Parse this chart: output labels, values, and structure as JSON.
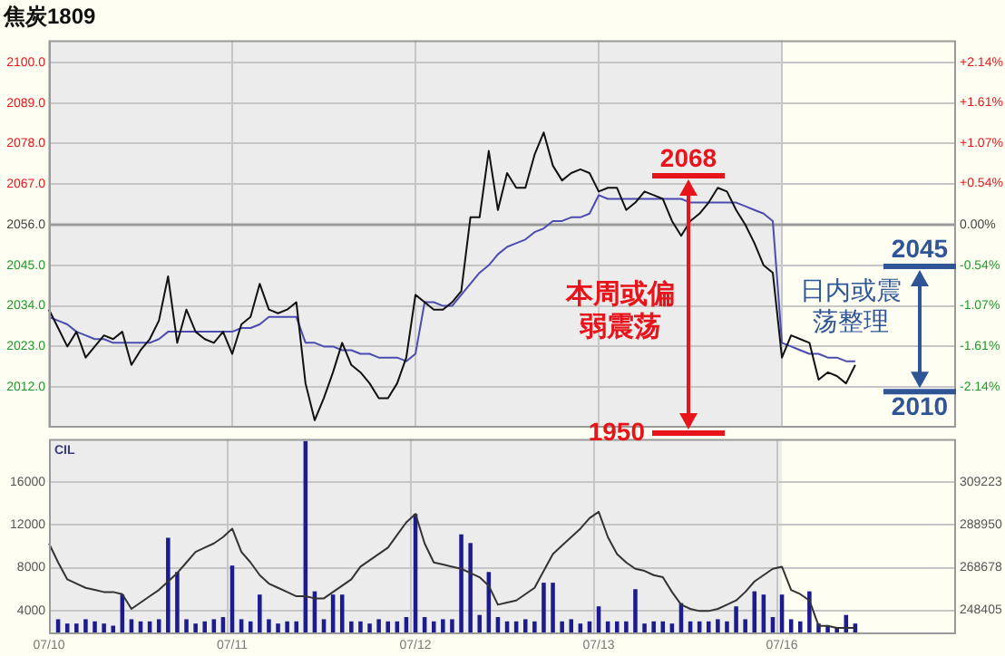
{
  "chart_data": [
    {
      "type": "line",
      "title": "焦炭1809",
      "categories": [
        null,
        null,
        null,
        null,
        null,
        null,
        null,
        null,
        null,
        null,
        null,
        null,
        null,
        null,
        null,
        null,
        null,
        null,
        null,
        null,
        null,
        null,
        null,
        null,
        null,
        null,
        null,
        null,
        null,
        null,
        null,
        null,
        null,
        null,
        null,
        null,
        null,
        null,
        null,
        null,
        null,
        null,
        null,
        null,
        null,
        null,
        null,
        null,
        null,
        null,
        null,
        null,
        null,
        null,
        null,
        null,
        null,
        null,
        null,
        null,
        null,
        null,
        null,
        null,
        null,
        null,
        null,
        null,
        null,
        null,
        null,
        null,
        null,
        null,
        null,
        null,
        null,
        null,
        null,
        null,
        null,
        null,
        null,
        null,
        null,
        null,
        null,
        null,
        null,
        null,
        null,
        null,
        null,
        null,
        null,
        null,
        null,
        null,
        null,
        null
      ],
      "ylim": [
        2001,
        2106
      ],
      "yticks": [
        {
          "value": 2012,
          "label": "2012.0"
        },
        {
          "value": 2023,
          "label": "2023.0"
        },
        {
          "value": 2034,
          "label": "2034.0"
        },
        {
          "value": 2045,
          "label": "2045.0"
        },
        {
          "value": 2056,
          "label": "2056.0"
        },
        {
          "value": 2067,
          "label": "2067.0"
        },
        {
          "value": 2078,
          "label": "2078.0"
        },
        {
          "value": 2089,
          "label": "2089.0"
        },
        {
          "value": 2100,
          "label": "2100.0"
        }
      ],
      "y2lim": [
        -2.68,
        2.43
      ],
      "y2ticks": [
        {
          "value": -2.14,
          "label": "-2.14%"
        },
        {
          "value": -1.61,
          "label": "-1.61%"
        },
        {
          "value": -1.07,
          "label": "-1.07%"
        },
        {
          "value": -0.54,
          "label": "-0.54%"
        },
        {
          "value": 0,
          "label": "0.00%"
        },
        {
          "value": 0.54,
          "label": "+0.54%"
        },
        {
          "value": 1.07,
          "label": "+1.07%"
        },
        {
          "value": 1.61,
          "label": "+1.61%"
        },
        {
          "value": 2.14,
          "label": "+2.14%"
        }
      ],
      "tick_labels": "y",
      "grid": true,
      "legend": false,
      "marker": "none",
      "ref_lines": [
        {
          "axis": "y",
          "value": 2056,
          "color": "#9a9a9a"
        }
      ],
      "annotations": [
        "2068",
        "1950",
        "本周或偏弱震荡",
        "2045",
        "2010",
        "日内或震荡整理"
      ],
      "series": [
        {
          "color": "#111111",
          "values": [
            2033,
            2028,
            2023,
            2027,
            2020,
            2023,
            2026,
            2025,
            2027,
            2018,
            2022,
            2025,
            2030,
            2042,
            2024,
            2033,
            2027,
            2025,
            2024,
            2027,
            2021,
            2029,
            2031,
            2040,
            2033,
            2032,
            2033,
            2035,
            2013,
            2003,
            2009,
            2016,
            2024,
            2018,
            2016,
            2013,
            2009,
            2009,
            2013,
            2020,
            2037,
            2035,
            2033,
            2033,
            2035,
            2038,
            2058,
            2058,
            2076,
            2060,
            2070,
            2066,
            2066,
            2075,
            2081,
            2072,
            2068,
            2070,
            2071,
            2070,
            2065,
            2066,
            2066,
            2060,
            2062,
            2065,
            2064,
            2063,
            2057,
            2053,
            2057,
            2059,
            2062,
            2066,
            2065,
            2060,
            2056,
            2051,
            2045,
            2043,
            2020,
            2026,
            2025,
            2024,
            2014,
            2016,
            2015,
            2013,
            2018,
            null,
            null,
            null,
            null,
            null,
            null,
            null,
            null,
            null,
            null,
            null
          ]
        },
        {
          "color": "#4b4bb0",
          "values": [
            2031,
            2030,
            2029,
            2027,
            2026,
            2025,
            2025,
            2024,
            2024,
            2024,
            2024,
            2024,
            2025,
            2027,
            2027,
            2027,
            2027,
            2027,
            2027,
            2027,
            2027,
            2028,
            2028,
            2029,
            2031,
            2031,
            2031,
            2031,
            2024,
            2024,
            2023,
            2023,
            2022,
            2022,
            2021,
            2021,
            2020,
            2020,
            2020,
            2019,
            2021,
            2035,
            2035,
            2034,
            2034,
            2037,
            2040,
            2043,
            2045,
            2048,
            2050,
            2051,
            2052,
            2054,
            2055,
            2057,
            2057,
            2058,
            2058,
            2059,
            2064,
            2063,
            2063,
            2063,
            2063,
            2063,
            2063,
            2063,
            2063,
            2063,
            2062,
            2062,
            2062,
            2062,
            2062,
            2062,
            2061,
            2060,
            2059,
            2057,
            2024,
            2023,
            2022,
            2021,
            2021,
            2020,
            2020,
            2019,
            2019,
            null,
            null,
            null,
            null,
            null,
            null,
            null,
            null,
            null,
            null,
            null
          ]
        }
      ]
    },
    {
      "type": "bar",
      "title": "CIL",
      "categories": [
        "07/10",
        null,
        null,
        null,
        null,
        null,
        null,
        null,
        null,
        null,
        null,
        null,
        null,
        null,
        null,
        null,
        null,
        null,
        null,
        null,
        "07/11",
        null,
        null,
        null,
        null,
        null,
        null,
        null,
        null,
        null,
        null,
        null,
        null,
        null,
        null,
        null,
        null,
        null,
        null,
        null,
        "07/12",
        null,
        null,
        null,
        null,
        null,
        null,
        null,
        null,
        null,
        null,
        null,
        null,
        null,
        null,
        null,
        null,
        null,
        null,
        null,
        "07/13",
        null,
        null,
        null,
        null,
        null,
        null,
        null,
        null,
        null,
        null,
        null,
        null,
        null,
        null,
        null,
        null,
        null,
        null,
        null,
        "07/16",
        null,
        null,
        null,
        null,
        null,
        null,
        null,
        null,
        null,
        null,
        null,
        null,
        null,
        null,
        null,
        null,
        null,
        null,
        null
      ],
      "ylim": [
        1800,
        20000
      ],
      "yticks": [
        4000,
        8000,
        12000,
        16000
      ],
      "y2lim": [
        237000,
        329500
      ],
      "y2ticks": [
        248405,
        268678,
        288950,
        309223
      ],
      "grid": true,
      "legend": false,
      "marker": "none",
      "series": [
        {
          "color": "#1c1c8e",
          "values": [
            null,
            3200,
            2800,
            2800,
            3200,
            3000,
            2800,
            2600,
            5500,
            3200,
            3000,
            3000,
            3200,
            10800,
            7600,
            3200,
            2800,
            3000,
            3200,
            3400,
            8200,
            3200,
            3000,
            5500,
            3200,
            2800,
            3000,
            3000,
            19800,
            5800,
            3200,
            5500,
            5500,
            3000,
            3000,
            2800,
            3200,
            3000,
            3000,
            3400,
            13000,
            3400,
            3000,
            3200,
            3200,
            11100,
            10300,
            3600,
            7600,
            3400,
            3000,
            3000,
            3200,
            3000,
            6600,
            6600,
            3000,
            3200,
            2800,
            3000,
            4400,
            3000,
            3000,
            3000,
            6000,
            2800,
            3000,
            3000,
            2800,
            4700,
            3000,
            3000,
            3000,
            3200,
            3000,
            4400,
            3200,
            5800,
            5500,
            3400,
            5500,
            3200,
            3000,
            5800,
            2800,
            2600,
            2400,
            3600,
            2800,
            null,
            null,
            null,
            null,
            null,
            null,
            null,
            null,
            null,
            null,
            null
          ]
        },
        {
          "type": "line",
          "axis": "y2",
          "color": "#333333",
          "values": [
            280000,
            271000,
            263000,
            261000,
            259000,
            258000,
            257000,
            257000,
            256000,
            249000,
            252000,
            255000,
            258000,
            262000,
            266000,
            271000,
            276000,
            278000,
            280000,
            283000,
            287000,
            276000,
            271000,
            265000,
            261000,
            259000,
            257000,
            255000,
            255000,
            254000,
            254000,
            257000,
            260000,
            263000,
            269000,
            272000,
            275000,
            278000,
            284000,
            290000,
            294000,
            280000,
            271000,
            270000,
            269000,
            268000,
            266000,
            264000,
            260000,
            251000,
            252000,
            253000,
            256000,
            259000,
            267000,
            275000,
            279000,
            283000,
            287000,
            292000,
            295000,
            283000,
            275000,
            271000,
            268000,
            267000,
            265000,
            264000,
            257000,
            251000,
            249000,
            248000,
            248000,
            249000,
            251000,
            253000,
            257000,
            262000,
            265000,
            268000,
            269000,
            258000,
            256000,
            253000,
            241000,
            241000,
            240000,
            240000,
            240000,
            null,
            null,
            null,
            null,
            null,
            null,
            null,
            null,
            null,
            null,
            null
          ]
        }
      ]
    }
  ]
}
